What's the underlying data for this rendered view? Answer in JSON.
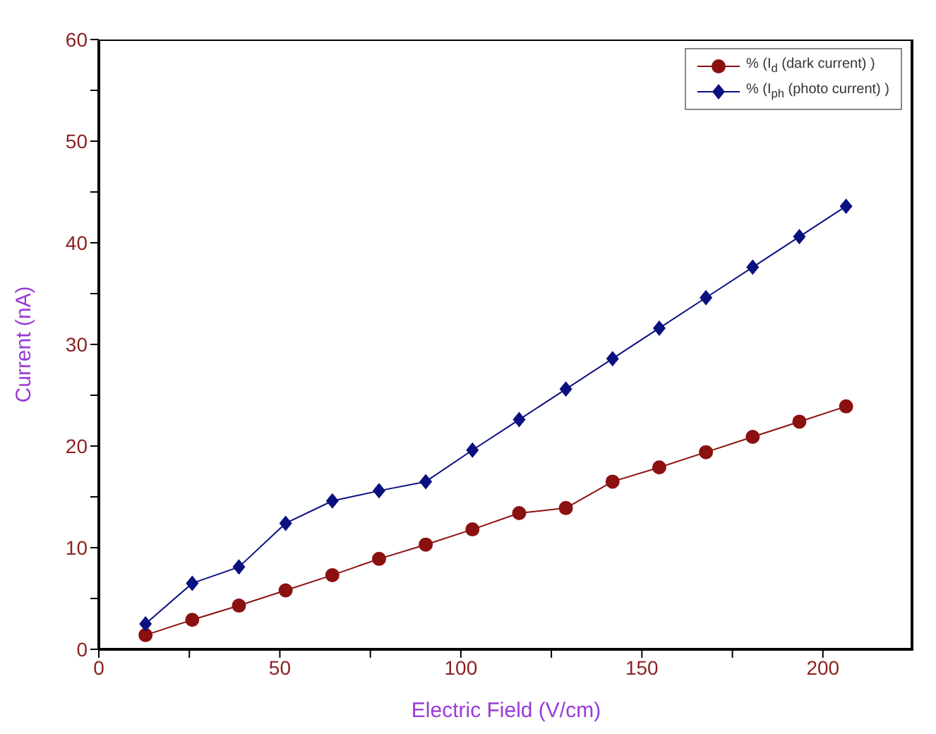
{
  "chart_data": {
    "type": "line",
    "xlabel": "Electric Field (V/cm)",
    "ylabel": "Current (nA)",
    "x": [
      12.9,
      25.8,
      38.7,
      51.6,
      64.5,
      77.4,
      90.3,
      103.2,
      116.1,
      129,
      141.9,
      154.8,
      167.7,
      180.6,
      193.5,
      206.4
    ],
    "series": [
      {
        "name": "% (I$_{d}$ (dark current) )",
        "color": "#8b1010",
        "marker": "circle",
        "values": [
          1.4,
          2.9,
          4.3,
          5.8,
          7.3,
          8.9,
          10.3,
          11.8,
          13.4,
          13.9,
          16.5,
          17.9,
          19.4,
          20.9,
          22.4,
          23.9
        ]
      },
      {
        "name": "% (I$_{ph}$ (photo current) )",
        "color": "#0a1080",
        "marker": "diamond",
        "values": [
          2.5,
          6.5,
          8.1,
          12.4,
          14.6,
          15.6,
          16.5,
          19.6,
          22.6,
          25.6,
          28.6,
          31.6,
          34.6,
          37.6,
          40.6,
          43.6
        ]
      }
    ],
    "xlim": [
      0,
      225
    ],
    "xticks": [
      0,
      {
        "value": 25,
        "label": null
      },
      50,
      {
        "value": 75,
        "label": null
      },
      100,
      {
        "value": 125,
        "label": null
      },
      150,
      {
        "value": 175,
        "label": null
      },
      200
    ],
    "ylim": [
      0,
      60
    ],
    "yticks": [
      0,
      {
        "value": 5,
        "label": null
      },
      10,
      {
        "value": 15,
        "label": null
      },
      20,
      {
        "value": 25,
        "label": null
      },
      30,
      {
        "value": 35,
        "label": null
      },
      40,
      {
        "value": 45,
        "label": null
      },
      50,
      {
        "value": 55,
        "label": null
      },
      60
    ],
    "grid": false,
    "legend": "top right",
    "line_style": "solid"
  }
}
